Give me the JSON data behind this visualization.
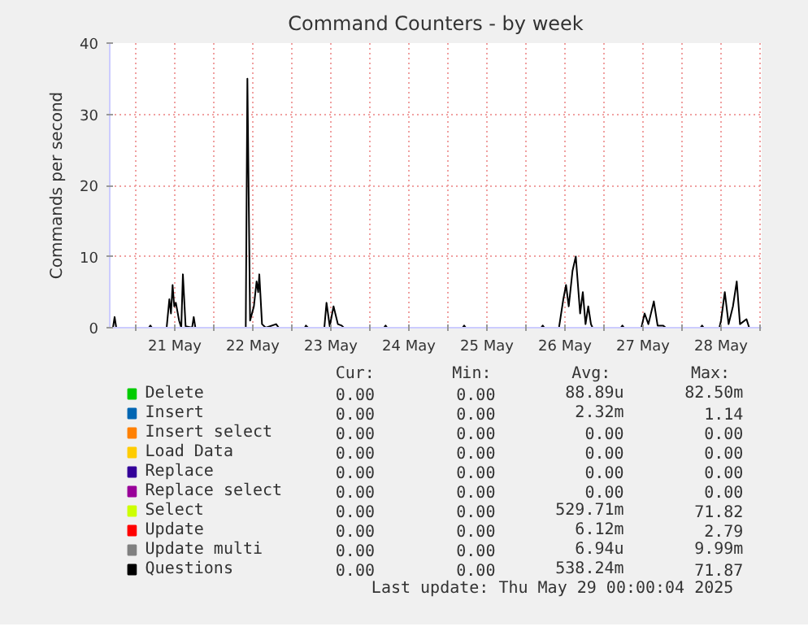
{
  "chart_data": {
    "type": "line",
    "title": "Command Counters - by week",
    "ylabel": "Commands per second",
    "xlim": [
      "2025-05-20T16:00",
      "2025-05-29T00:30"
    ],
    "ylim": [
      0,
      40
    ],
    "yticks": [
      0,
      10,
      20,
      30,
      40
    ],
    "xticks": [
      {
        "value": "2025-05-21T00:00",
        "label": null
      },
      {
        "value": "2025-05-21T12:00",
        "label": "21 May"
      },
      {
        "value": "2025-05-22T00:00",
        "label": null
      },
      {
        "value": "2025-05-22T12:00",
        "label": "22 May"
      },
      {
        "value": "2025-05-23T00:00",
        "label": null
      },
      {
        "value": "2025-05-23T12:00",
        "label": "23 May"
      },
      {
        "value": "2025-05-24T00:00",
        "label": null
      },
      {
        "value": "2025-05-24T12:00",
        "label": "24 May"
      },
      {
        "value": "2025-05-25T00:00",
        "label": null
      },
      {
        "value": "2025-05-25T12:00",
        "label": "25 May"
      },
      {
        "value": "2025-05-26T00:00",
        "label": null
      },
      {
        "value": "2025-05-26T12:00",
        "label": "26 May"
      },
      {
        "value": "2025-05-27T00:00",
        "label": null
      },
      {
        "value": "2025-05-27T12:00",
        "label": "27 May"
      },
      {
        "value": "2025-05-28T00:00",
        "label": null
      },
      {
        "value": "2025-05-28T12:00",
        "label": "28 May"
      },
      {
        "value": "2025-05-29T00:00",
        "label": null
      }
    ],
    "grid": true,
    "legend": "bottom",
    "series": [
      {
        "name": "Delete",
        "color": "#00cc00"
      },
      {
        "name": "Insert",
        "color": "#0066b3"
      },
      {
        "name": "Insert select",
        "color": "#ff8000"
      },
      {
        "name": "Load Data",
        "color": "#ffcc00"
      },
      {
        "name": "Replace",
        "color": "#330099"
      },
      {
        "name": "Replace select",
        "color": "#990099"
      },
      {
        "name": "Select",
        "color": "#ccff00"
      },
      {
        "name": "Update",
        "color": "#ff0000"
      },
      {
        "name": "Update multi",
        "color": "#808080"
      },
      {
        "name": "Questions",
        "color": "#000000",
        "x": [
          "2025-05-20T16:00",
          "2025-05-20T17:00",
          "2025-05-20T17:30",
          "2025-05-20T18:00",
          "2025-05-21T04:00",
          "2025-05-21T04:30",
          "2025-05-21T05:00",
          "2025-05-21T09:30",
          "2025-05-21T10:20",
          "2025-05-21T10:50",
          "2025-05-21T11:20",
          "2025-05-21T11:50",
          "2025-05-21T12:20",
          "2025-05-21T13:20",
          "2025-05-21T14:00",
          "2025-05-21T14:30",
          "2025-05-21T15:20",
          "2025-05-21T17:20",
          "2025-05-21T17:50",
          "2025-05-21T18:20",
          "2025-05-22T09:50",
          "2025-05-22T10:20",
          "2025-05-22T11:10",
          "2025-05-22T12:20",
          "2025-05-22T13:10",
          "2025-05-22T13:40",
          "2025-05-22T14:00",
          "2025-05-22T14:50",
          "2025-05-22T16:00",
          "2025-05-22T19:10",
          "2025-05-22T20:00",
          "2025-05-23T04:00",
          "2025-05-23T04:20",
          "2025-05-23T05:00",
          "2025-05-23T10:00",
          "2025-05-23T10:40",
          "2025-05-23T11:40",
          "2025-05-23T12:50",
          "2025-05-23T14:10",
          "2025-05-23T15:20",
          "2025-05-23T16:00",
          "2025-05-24T04:20",
          "2025-05-24T04:50",
          "2025-05-24T05:20",
          "2025-05-25T04:30",
          "2025-05-25T05:00",
          "2025-05-25T05:30",
          "2025-05-26T04:40",
          "2025-05-26T05:10",
          "2025-05-26T05:40",
          "2025-05-26T10:10",
          "2025-05-26T10:40",
          "2025-05-26T11:30",
          "2025-05-26T12:20",
          "2025-05-26T13:10",
          "2025-05-26T14:20",
          "2025-05-26T15:20",
          "2025-05-26T16:40",
          "2025-05-26T17:30",
          "2025-05-26T18:20",
          "2025-05-26T19:10",
          "2025-05-26T20:00",
          "2025-05-26T20:30",
          "2025-05-27T05:10",
          "2025-05-27T05:40",
          "2025-05-27T06:10",
          "2025-05-27T11:30",
          "2025-05-27T12:30",
          "2025-05-27T13:40",
          "2025-05-27T15:20",
          "2025-05-27T16:30",
          "2025-05-27T18:10",
          "2025-05-27T19:00",
          "2025-05-28T05:40",
          "2025-05-28T06:10",
          "2025-05-28T06:40",
          "2025-05-28T11:30",
          "2025-05-28T12:00",
          "2025-05-28T13:10",
          "2025-05-28T14:20",
          "2025-05-28T15:40",
          "2025-05-28T16:50",
          "2025-05-28T17:50",
          "2025-05-28T19:50",
          "2025-05-28T20:40",
          "2025-05-29T00:00"
        ],
        "values": [
          0,
          0,
          1.5,
          0,
          0,
          0.3,
          0,
          0,
          4,
          2,
          6,
          3,
          3.5,
          1,
          0,
          7.5,
          0.2,
          0,
          1.5,
          0,
          0,
          35,
          1,
          3,
          6.5,
          5,
          7.5,
          0.5,
          0,
          0.5,
          0,
          0,
          0.3,
          0,
          0,
          3.5,
          0.2,
          3,
          0.5,
          0.3,
          0,
          0,
          0.3,
          0,
          0,
          0.3,
          0,
          0,
          0.3,
          0,
          0,
          1.5,
          4,
          6,
          3,
          8,
          10,
          2,
          5,
          0.5,
          3,
          0.5,
          0,
          0,
          0.3,
          0,
          0,
          2,
          0.5,
          3.7,
          0.3,
          0.3,
          0,
          0,
          0.3,
          0,
          0,
          1,
          5,
          0.5,
          3,
          6.5,
          0.5,
          1.2,
          0,
          0
        ]
      }
    ],
    "annotations": [
      "Cur:",
      "Min:",
      "Avg:",
      "Max:",
      "0.00",
      "0.00",
      "88.89u",
      "82.50m",
      "0.00",
      "0.00",
      "2.32m",
      "1.14",
      "0.00",
      "0.00",
      "0.00",
      "0.00",
      "0.00",
      "0.00",
      "0.00",
      "0.00",
      "0.00",
      "0.00",
      "0.00",
      "0.00",
      "0.00",
      "0.00",
      "0.00",
      "0.00",
      "0.00",
      "0.00",
      "529.71m",
      "71.82",
      "0.00",
      "0.00",
      "6.12m",
      "2.79",
      "0.00",
      "0.00",
      "6.94u",
      "9.99m",
      "0.00",
      "0.00",
      "538.24m",
      "71.87",
      "Last update:  Thu May 29 00:00:04 2025"
    ]
  }
}
